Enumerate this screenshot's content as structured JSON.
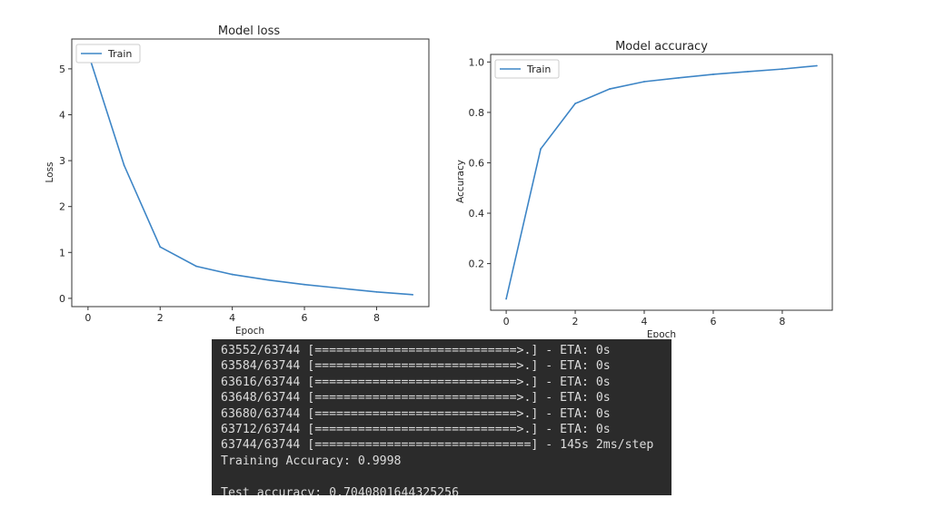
{
  "chart_data": [
    {
      "type": "line",
      "title": "Model loss",
      "xlabel": "Epoch",
      "ylabel": "Loss",
      "x": [
        0,
        1,
        2,
        3,
        4,
        5,
        6,
        7,
        8,
        9
      ],
      "series": [
        {
          "name": "Train",
          "values": [
            5.35,
            2.9,
            1.12,
            0.7,
            0.52,
            0.4,
            0.3,
            0.22,
            0.14,
            0.08
          ]
        }
      ],
      "xlim": [
        -0.45,
        9.45
      ],
      "ylim": [
        -0.18,
        5.65
      ],
      "xticks": [
        0,
        2,
        4,
        6,
        8
      ],
      "yticks": [
        0,
        1,
        2,
        3,
        4,
        5
      ],
      "xtick_labels": [
        "0",
        "2",
        "4",
        "6",
        "8"
      ],
      "ytick_labels": [
        "0",
        "1",
        "2",
        "3",
        "4",
        "5"
      ],
      "legend_position": "upper left",
      "grid": false,
      "line_color": "#3d85c6"
    },
    {
      "type": "line",
      "title": "Model accuracy",
      "xlabel": "Epoch",
      "ylabel": "Accuracy",
      "x": [
        0,
        1,
        2,
        3,
        4,
        5,
        6,
        7,
        8,
        9
      ],
      "series": [
        {
          "name": "Train",
          "values": [
            0.06,
            0.655,
            0.835,
            0.893,
            0.922,
            0.937,
            0.951,
            0.962,
            0.972,
            0.985
          ]
        }
      ],
      "xlim": [
        -0.45,
        9.45
      ],
      "ylim": [
        0.015,
        1.03
      ],
      "xticks": [
        0,
        2,
        4,
        6,
        8
      ],
      "yticks": [
        0.2,
        0.4,
        0.6,
        0.8,
        1.0
      ],
      "xtick_labels": [
        "0",
        "2",
        "4",
        "6",
        "8"
      ],
      "ytick_labels": [
        "0.2",
        "0.4",
        "0.6",
        "0.8",
        "1.0"
      ],
      "legend_position": "upper left",
      "grid": false,
      "line_color": "#3d85c6"
    }
  ],
  "terminal": {
    "lines": [
      "63552/63744 [============================>.] - ETA: 0s",
      "63584/63744 [============================>.] - ETA: 0s",
      "63616/63744 [============================>.] - ETA: 0s",
      "63648/63744 [============================>.] - ETA: 0s",
      "63680/63744 [============================>.] - ETA: 0s",
      "63712/63744 [============================>.] - ETA: 0s",
      "63744/63744 [==============================] - 145s 2ms/step",
      "Training Accuracy: 0.9998",
      "",
      "Test accuracy: 0.7040801644325256"
    ]
  }
}
